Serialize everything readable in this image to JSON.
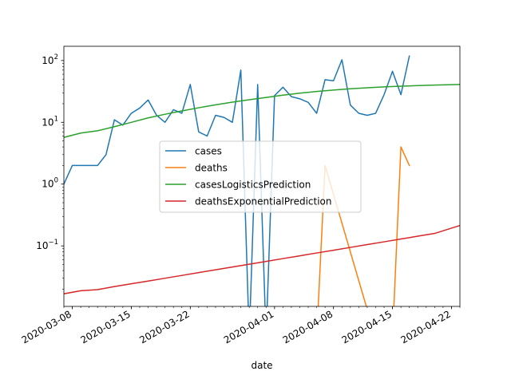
{
  "chart_data": {
    "type": "line",
    "title": "",
    "xlabel": "date",
    "ylabel": "",
    "yscale": "log",
    "x_range": [
      "2020-03-07",
      "2020-04-23"
    ],
    "y_range": [
      0.0105,
      170
    ],
    "grid": false,
    "legend_position": "center-left",
    "x_ticks": [
      "2020-03-08",
      "2020-03-15",
      "2020-03-22",
      "2020-04-01",
      "2020-04-08",
      "2020-04-15",
      "2020-04-22"
    ],
    "y_ticks": [
      {
        "value": 0.1,
        "base": "10",
        "exp": "−1"
      },
      {
        "value": 1,
        "base": "10",
        "exp": "0"
      },
      {
        "value": 10,
        "base": "10",
        "exp": "1"
      },
      {
        "value": 100,
        "base": "10",
        "exp": "2"
      }
    ],
    "series": [
      {
        "name": "cases",
        "color": "#1f77b4",
        "x": [
          "2020-03-07",
          "2020-03-08",
          "2020-03-09",
          "2020-03-10",
          "2020-03-11",
          "2020-03-12",
          "2020-03-13",
          "2020-03-14",
          "2020-03-15",
          "2020-03-16",
          "2020-03-17",
          "2020-03-18",
          "2020-03-19",
          "2020-03-20",
          "2020-03-21",
          "2020-03-22",
          "2020-03-23",
          "2020-03-24",
          "2020-03-25",
          "2020-03-26",
          "2020-03-27",
          "2020-03-28",
          "2020-03-29",
          "2020-03-30",
          "2020-03-31",
          "2020-04-01",
          "2020-04-02",
          "2020-04-03",
          "2020-04-04",
          "2020-04-05",
          "2020-04-06",
          "2020-04-07",
          "2020-04-08",
          "2020-04-09",
          "2020-04-10",
          "2020-04-11",
          "2020-04-12",
          "2020-04-13",
          "2020-04-14",
          "2020-04-15",
          "2020-04-16",
          "2020-04-17"
        ],
        "y": [
          1,
          2,
          2,
          2,
          2,
          3,
          11,
          9,
          14,
          17,
          23,
          13,
          10,
          16,
          14,
          41,
          7,
          6,
          13,
          12,
          10,
          70,
          0,
          41,
          0,
          27,
          37,
          26,
          24,
          21,
          14,
          49,
          47,
          103,
          19,
          14,
          13,
          14,
          28,
          67,
          28,
          118
        ]
      },
      {
        "name": "deaths",
        "color": "#ff7f0e",
        "x": [
          "2020-04-05",
          "2020-04-06",
          "2020-04-07",
          "2020-04-13",
          "2020-04-14",
          "2020-04-15",
          "2020-04-16",
          "2020-04-17"
        ],
        "y": [
          0,
          0,
          2,
          0,
          0,
          0,
          4,
          2
        ]
      },
      {
        "name": "casesLogisticsPrediction",
        "color": "#2ca02c",
        "x": [
          "2020-03-07",
          "2020-03-09",
          "2020-03-11",
          "2020-03-13",
          "2020-03-15",
          "2020-03-17",
          "2020-03-19",
          "2020-03-21",
          "2020-03-23",
          "2020-03-25",
          "2020-03-27",
          "2020-03-29",
          "2020-03-31",
          "2020-04-02",
          "2020-04-04",
          "2020-04-06",
          "2020-04-08",
          "2020-04-10",
          "2020-04-12",
          "2020-04-14",
          "2020-04-16",
          "2020-04-18",
          "2020-04-20",
          "2020-04-23"
        ],
        "y": [
          5.7,
          6.7,
          7.3,
          8.5,
          10.0,
          11.8,
          13.5,
          15.3,
          17.2,
          19.2,
          21.2,
          23.2,
          25.3,
          27.5,
          29.6,
          31.6,
          33.3,
          34.9,
          36.2,
          37.4,
          38.4,
          39.3,
          40.0,
          41.0
        ]
      },
      {
        "name": "deathsExponentialPrediction",
        "color": "#d62728",
        "x": [
          "2020-03-07",
          "2020-03-09",
          "2020-03-11",
          "2020-03-13",
          "2020-03-15",
          "2020-03-17",
          "2020-03-19",
          "2020-03-21",
          "2020-03-23",
          "2020-03-25",
          "2020-03-27",
          "2020-03-29",
          "2020-03-31",
          "2020-04-02",
          "2020-04-04",
          "2020-04-06",
          "2020-04-08",
          "2020-04-10",
          "2020-04-12",
          "2020-04-14",
          "2020-04-16",
          "2020-04-18",
          "2020-04-20",
          "2020-04-23"
        ],
        "y": [
          0.0168,
          0.0188,
          0.0196,
          0.022,
          0.0244,
          0.027,
          0.03,
          0.0333,
          0.037,
          0.0411,
          0.0456,
          0.0506,
          0.0562,
          0.0624,
          0.0692,
          0.0768,
          0.0852,
          0.0946,
          0.105,
          0.1165,
          0.1293,
          0.1435,
          0.1593,
          0.214
        ]
      }
    ]
  }
}
